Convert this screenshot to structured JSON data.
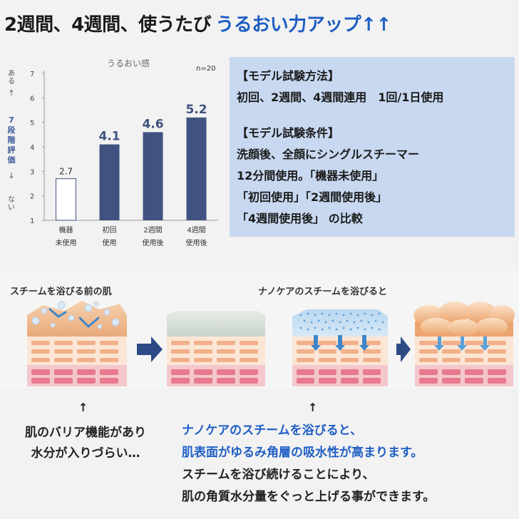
{
  "headline": {
    "main": "2週間、4週間、使うたび",
    "accent": "うるおい力アップ↑↑"
  },
  "chart_data": {
    "type": "bar",
    "title": "うるおい感",
    "note": "n=20",
    "ylabel_top": "ある",
    "ylabel_middle": "7段階評価",
    "ylabel_bottom": "ない",
    "yticks": [
      "7",
      "6",
      "5",
      "4",
      "3",
      "2",
      "1"
    ],
    "ylim": [
      1,
      7
    ],
    "grid": false,
    "categories": [
      {
        "line1": "機器",
        "line2": "未使用"
      },
      {
        "line1": "初回",
        "line2": "使用"
      },
      {
        "line1": "2週間",
        "line2": "使用後"
      },
      {
        "line1": "4週間",
        "line2": "使用後"
      }
    ],
    "values": [
      2.7,
      4.1,
      4.6,
      5.2
    ],
    "value_labels": [
      "2.7",
      "4.1",
      "4.6",
      "5.2"
    ],
    "bar_colors": [
      "#ffffff",
      "#3f5280",
      "#3f5280",
      "#3f5280"
    ],
    "label_colors": [
      "#333333",
      "#3f5280",
      "#3f5280",
      "#3f5280"
    ]
  },
  "method": {
    "heading1": "【モデル試験方法】",
    "line1": "初回、2週間、4週間連用　1回/1日使用",
    "heading2": "【モデル試験条件】",
    "line2": "洗顔後、全顔にシングルスチーマー",
    "line3": "12分間使用。「機器未使用」",
    "line4": "「初回使用」「2週間使用後」",
    "line5": "「4週間使用後」 の比較"
  },
  "illustration": {
    "label_before": "スチームを浴びる前の肌",
    "label_after": "ナノケアのスチームを浴びると"
  },
  "notes": {
    "arrow": "↑",
    "left_line1": "肌のバリア機能があり",
    "left_line2": "水分が入りづらい…",
    "right_line1": "ナノケアのスチームを浴びると、",
    "right_line2": "肌表面がゆるみ角層の吸水性が高まります。",
    "right_line3": "スチームを浴び続けることにより、",
    "right_line4": "肌の角質水分量をぐっと上げる事ができます。"
  },
  "colors": {
    "accent": "#1f5ec4",
    "bar": "#3f5280",
    "box": "#c8d8f0"
  }
}
